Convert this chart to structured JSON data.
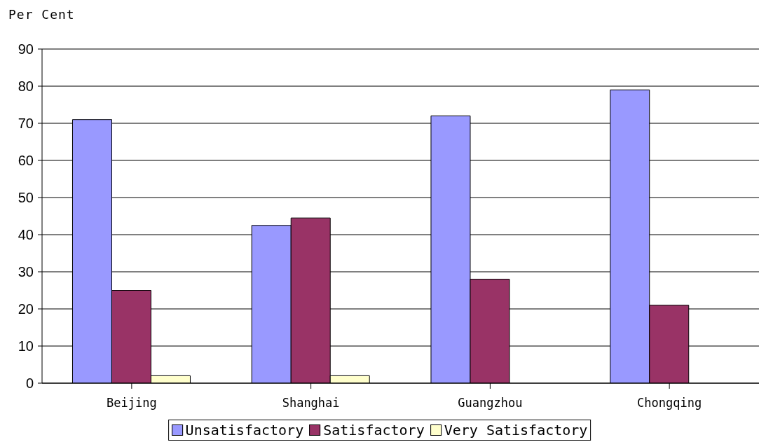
{
  "chart_data": {
    "type": "bar",
    "ylabel": "Per Cent",
    "categories": [
      "Beijing",
      "Shanghai",
      "Guangzhou",
      "Chongqing"
    ],
    "series": [
      {
        "name": "Unsatisfactory",
        "color": "#9999ff",
        "values": [
          71,
          42.5,
          72,
          79
        ]
      },
      {
        "name": "Satisfactory",
        "color": "#993366",
        "values": [
          25,
          44.5,
          28,
          21
        ]
      },
      {
        "name": "Very Satisfactory",
        "color": "#ffffcc",
        "values": [
          2,
          2,
          0,
          0
        ]
      }
    ],
    "ylim": [
      0,
      90
    ],
    "yticks": [
      0,
      10,
      20,
      30,
      40,
      50,
      60,
      70,
      80,
      90
    ],
    "grid": "y",
    "legend": "bottom"
  }
}
